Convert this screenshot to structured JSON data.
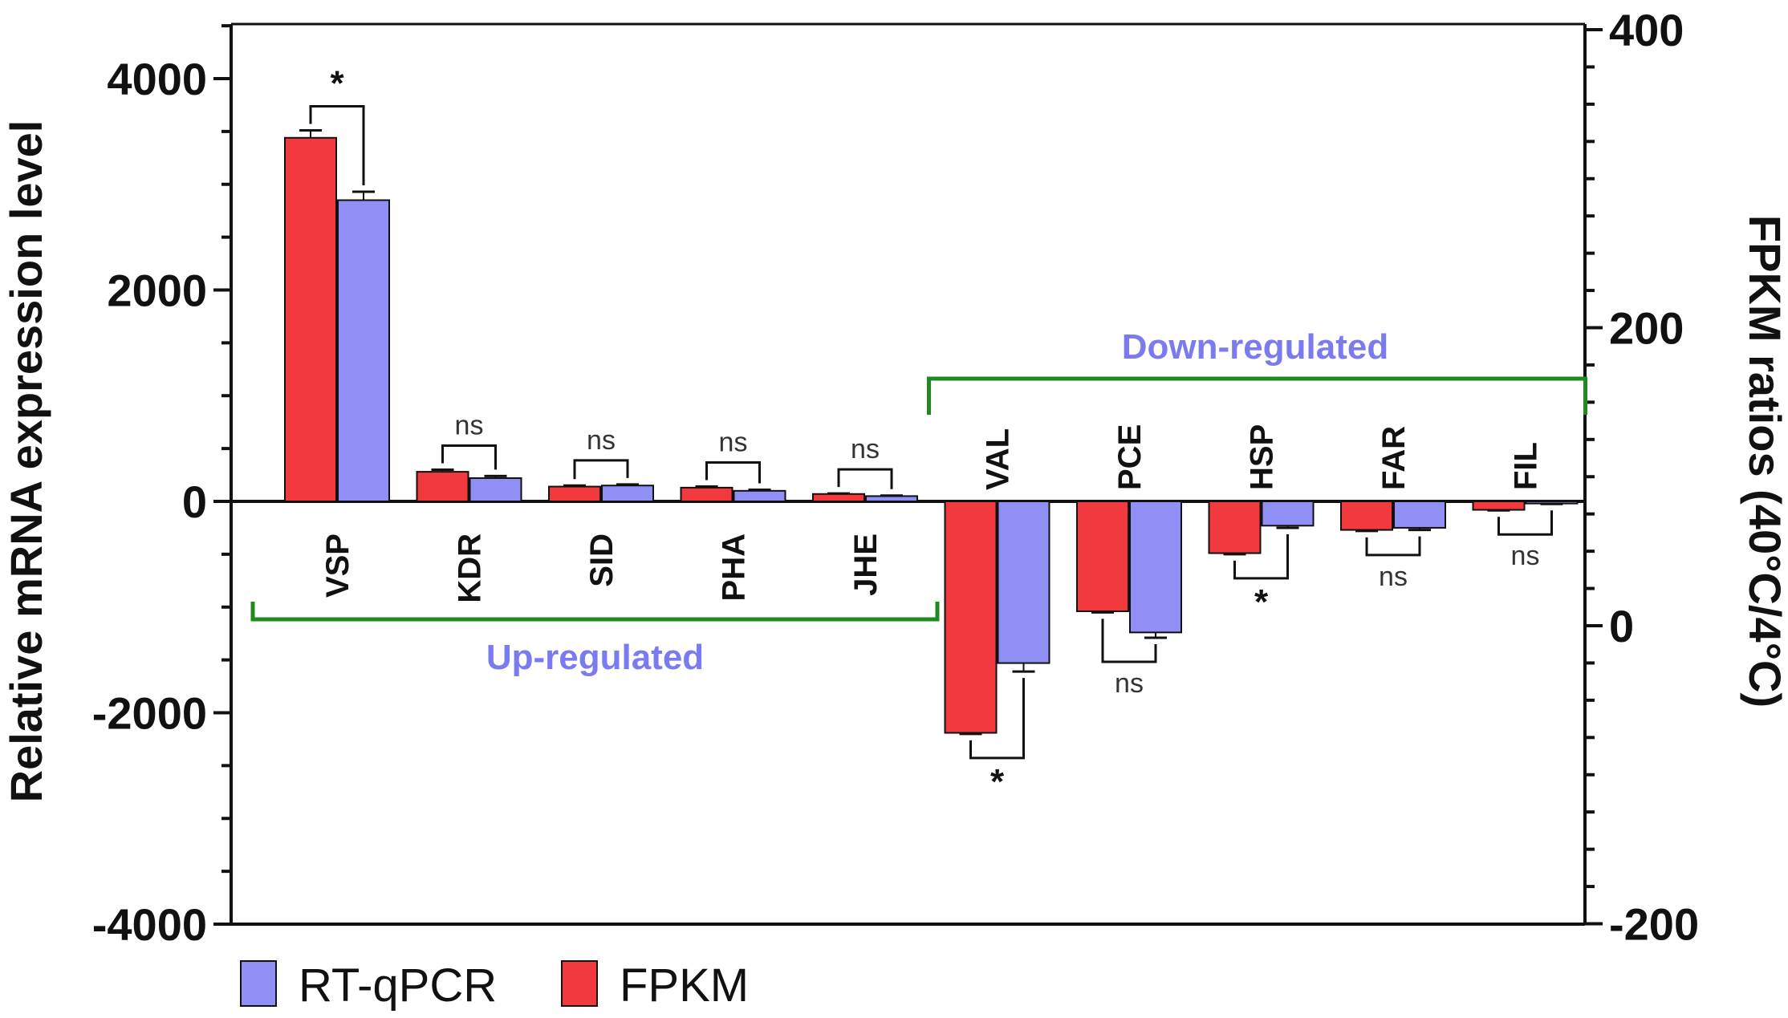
{
  "chart_data": {
    "type": "bar",
    "categories": [
      "VSP",
      "KDR",
      "SID",
      "PHA",
      "JHE",
      "VAL",
      "PCE",
      "HSP",
      "FAR",
      "FIL"
    ],
    "series": [
      {
        "name": "FPKM",
        "color": "#f23a3e",
        "axis": "left",
        "values": [
          3440,
          280,
          140,
          130,
          70,
          -2190,
          -1040,
          -490,
          -270,
          -80
        ],
        "errors": [
          70,
          20,
          10,
          10,
          5,
          10,
          10,
          10,
          10,
          5
        ]
      },
      {
        "name": "RT-qPCR",
        "color": "#8f8ff5",
        "axis": "left",
        "values": [
          2850,
          220,
          150,
          100,
          50,
          -1530,
          -1240,
          -230,
          -250,
          -20
        ],
        "errors": [
          80,
          20,
          10,
          10,
          5,
          80,
          50,
          20,
          20,
          5
        ]
      }
    ],
    "ylabel": "Relative mRNA expression level",
    "ylabel_right": "FPKM ratios (40°C/4°C)",
    "ylim": [
      -4000,
      4500
    ],
    "ylim_right": [
      -200,
      400
    ],
    "yticks": [
      "4000",
      "2000",
      "0",
      "-2000",
      "-4000"
    ],
    "yticks_right": [
      "400",
      "200",
      "0",
      "-200"
    ],
    "groups": [
      {
        "label": "Up-regulated",
        "from": "VSP",
        "to": "JHE",
        "label_color": "#7b7bf0",
        "bracket_color": "#1f8a1f"
      },
      {
        "label": "Down-regulated",
        "from": "VAL",
        "to": "FIL",
        "label_color": "#7b7bf0",
        "bracket_color": "#1f8a1f"
      }
    ],
    "significance": [
      "*",
      "ns",
      "ns",
      "ns",
      "ns",
      "*",
      "ns",
      "*",
      "ns",
      "ns"
    ],
    "legend": {
      "position": "bottom-left",
      "items": [
        "RT-qPCR",
        "FPKM"
      ]
    },
    "grid": false
  }
}
